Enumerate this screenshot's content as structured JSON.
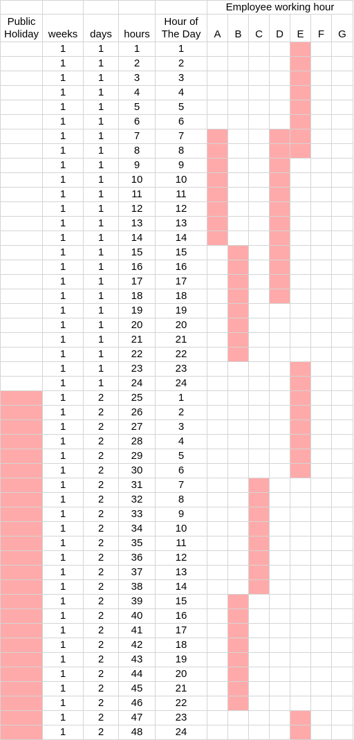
{
  "header": {
    "group_title": "Employee working hour",
    "columns": [
      "Public\nHoliday",
      "weeks",
      "days",
      "hours",
      "Hour of\nThe Day",
      "A",
      "B",
      "C",
      "D",
      "E",
      "F",
      "G"
    ]
  },
  "highlight_color": "#ffaaaa",
  "rows": [
    {
      "weeks": "1",
      "days": "1",
      "hours": "1",
      "hod": "1",
      "holiday": false,
      "on": [
        "E"
      ]
    },
    {
      "weeks": "1",
      "days": "1",
      "hours": "2",
      "hod": "2",
      "holiday": false,
      "on": [
        "E"
      ]
    },
    {
      "weeks": "1",
      "days": "1",
      "hours": "3",
      "hod": "3",
      "holiday": false,
      "on": [
        "E"
      ]
    },
    {
      "weeks": "1",
      "days": "1",
      "hours": "4",
      "hod": "4",
      "holiday": false,
      "on": [
        "E"
      ]
    },
    {
      "weeks": "1",
      "days": "1",
      "hours": "5",
      "hod": "5",
      "holiday": false,
      "on": [
        "E"
      ]
    },
    {
      "weeks": "1",
      "days": "1",
      "hours": "6",
      "hod": "6",
      "holiday": false,
      "on": [
        "E"
      ]
    },
    {
      "weeks": "1",
      "days": "1",
      "hours": "7",
      "hod": "7",
      "holiday": false,
      "on": [
        "A",
        "D",
        "E"
      ]
    },
    {
      "weeks": "1",
      "days": "1",
      "hours": "8",
      "hod": "8",
      "holiday": false,
      "on": [
        "A",
        "D",
        "E"
      ]
    },
    {
      "weeks": "1",
      "days": "1",
      "hours": "9",
      "hod": "9",
      "holiday": false,
      "on": [
        "A",
        "D"
      ]
    },
    {
      "weeks": "1",
      "days": "1",
      "hours": "10",
      "hod": "10",
      "holiday": false,
      "on": [
        "A",
        "D"
      ]
    },
    {
      "weeks": "1",
      "days": "1",
      "hours": "11",
      "hod": "11",
      "holiday": false,
      "on": [
        "A",
        "D"
      ]
    },
    {
      "weeks": "1",
      "days": "1",
      "hours": "12",
      "hod": "12",
      "holiday": false,
      "on": [
        "A",
        "D"
      ]
    },
    {
      "weeks": "1",
      "days": "1",
      "hours": "13",
      "hod": "13",
      "holiday": false,
      "on": [
        "A",
        "D"
      ]
    },
    {
      "weeks": "1",
      "days": "1",
      "hours": "14",
      "hod": "14",
      "holiday": false,
      "on": [
        "A",
        "D"
      ]
    },
    {
      "weeks": "1",
      "days": "1",
      "hours": "15",
      "hod": "15",
      "holiday": false,
      "on": [
        "B",
        "D"
      ]
    },
    {
      "weeks": "1",
      "days": "1",
      "hours": "16",
      "hod": "16",
      "holiday": false,
      "on": [
        "B",
        "D"
      ]
    },
    {
      "weeks": "1",
      "days": "1",
      "hours": "17",
      "hod": "17",
      "holiday": false,
      "on": [
        "B",
        "D"
      ]
    },
    {
      "weeks": "1",
      "days": "1",
      "hours": "18",
      "hod": "18",
      "holiday": false,
      "on": [
        "B",
        "D"
      ]
    },
    {
      "weeks": "1",
      "days": "1",
      "hours": "19",
      "hod": "19",
      "holiday": false,
      "on": [
        "B"
      ]
    },
    {
      "weeks": "1",
      "days": "1",
      "hours": "20",
      "hod": "20",
      "holiday": false,
      "on": [
        "B"
      ]
    },
    {
      "weeks": "1",
      "days": "1",
      "hours": "21",
      "hod": "21",
      "holiday": false,
      "on": [
        "B"
      ]
    },
    {
      "weeks": "1",
      "days": "1",
      "hours": "22",
      "hod": "22",
      "holiday": false,
      "on": [
        "B"
      ]
    },
    {
      "weeks": "1",
      "days": "1",
      "hours": "23",
      "hod": "23",
      "holiday": false,
      "on": [
        "E"
      ]
    },
    {
      "weeks": "1",
      "days": "1",
      "hours": "24",
      "hod": "24",
      "holiday": false,
      "on": [
        "E"
      ]
    },
    {
      "weeks": "1",
      "days": "2",
      "hours": "25",
      "hod": "1",
      "holiday": true,
      "on": [
        "E"
      ]
    },
    {
      "weeks": "1",
      "days": "2",
      "hours": "26",
      "hod": "2",
      "holiday": true,
      "on": [
        "E"
      ]
    },
    {
      "weeks": "1",
      "days": "2",
      "hours": "27",
      "hod": "3",
      "holiday": true,
      "on": [
        "E"
      ]
    },
    {
      "weeks": "1",
      "days": "2",
      "hours": "28",
      "hod": "4",
      "holiday": true,
      "on": [
        "E"
      ]
    },
    {
      "weeks": "1",
      "days": "2",
      "hours": "29",
      "hod": "5",
      "holiday": true,
      "on": [
        "E"
      ]
    },
    {
      "weeks": "1",
      "days": "2",
      "hours": "30",
      "hod": "6",
      "holiday": true,
      "on": [
        "E"
      ]
    },
    {
      "weeks": "1",
      "days": "2",
      "hours": "31",
      "hod": "7",
      "holiday": true,
      "on": [
        "C"
      ]
    },
    {
      "weeks": "1",
      "days": "2",
      "hours": "32",
      "hod": "8",
      "holiday": true,
      "on": [
        "C"
      ]
    },
    {
      "weeks": "1",
      "days": "2",
      "hours": "33",
      "hod": "9",
      "holiday": true,
      "on": [
        "C"
      ]
    },
    {
      "weeks": "1",
      "days": "2",
      "hours": "34",
      "hod": "10",
      "holiday": true,
      "on": [
        "C"
      ]
    },
    {
      "weeks": "1",
      "days": "2",
      "hours": "35",
      "hod": "11",
      "holiday": true,
      "on": [
        "C"
      ]
    },
    {
      "weeks": "1",
      "days": "2",
      "hours": "36",
      "hod": "12",
      "holiday": true,
      "on": [
        "C"
      ]
    },
    {
      "weeks": "1",
      "days": "2",
      "hours": "37",
      "hod": "13",
      "holiday": true,
      "on": [
        "C"
      ]
    },
    {
      "weeks": "1",
      "days": "2",
      "hours": "38",
      "hod": "14",
      "holiday": true,
      "on": [
        "C"
      ]
    },
    {
      "weeks": "1",
      "days": "2",
      "hours": "39",
      "hod": "15",
      "holiday": true,
      "on": [
        "B"
      ]
    },
    {
      "weeks": "1",
      "days": "2",
      "hours": "40",
      "hod": "16",
      "holiday": true,
      "on": [
        "B"
      ]
    },
    {
      "weeks": "1",
      "days": "2",
      "hours": "41",
      "hod": "17",
      "holiday": true,
      "on": [
        "B"
      ]
    },
    {
      "weeks": "1",
      "days": "2",
      "hours": "42",
      "hod": "18",
      "holiday": true,
      "on": [
        "B"
      ]
    },
    {
      "weeks": "1",
      "days": "2",
      "hours": "43",
      "hod": "19",
      "holiday": true,
      "on": [
        "B"
      ]
    },
    {
      "weeks": "1",
      "days": "2",
      "hours": "44",
      "hod": "20",
      "holiday": true,
      "on": [
        "B"
      ]
    },
    {
      "weeks": "1",
      "days": "2",
      "hours": "45",
      "hod": "21",
      "holiday": true,
      "on": [
        "B"
      ]
    },
    {
      "weeks": "1",
      "days": "2",
      "hours": "46",
      "hod": "22",
      "holiday": true,
      "on": [
        "B"
      ]
    },
    {
      "weeks": "1",
      "days": "2",
      "hours": "47",
      "hod": "23",
      "holiday": true,
      "on": [
        "E"
      ]
    },
    {
      "weeks": "1",
      "days": "2",
      "hours": "48",
      "hod": "24",
      "holiday": true,
      "on": [
        "E"
      ]
    }
  ]
}
